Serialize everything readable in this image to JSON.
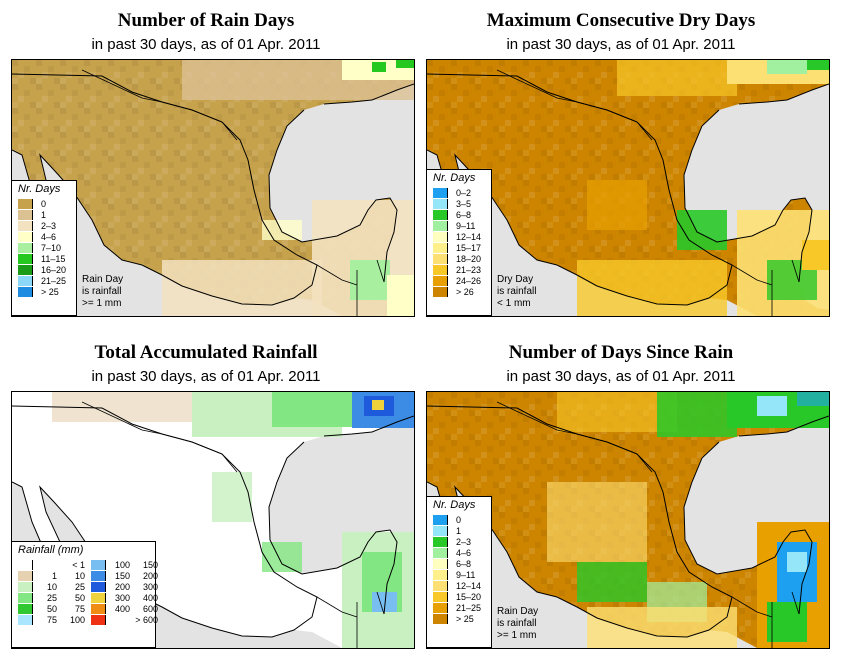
{
  "subtitle": "in past 30 days, as of  01 Apr. 2011",
  "colors": {
    "ocean": "#e3e3e3",
    "coast": "#000000"
  },
  "panels": [
    {
      "title": "Number of Rain Days",
      "legend_title": "Nr. Days",
      "note": [
        "Rain Day",
        "is rainfall",
        ">= 1 mm"
      ],
      "legend": [
        {
          "label": "0",
          "color": "#c6a24c"
        },
        {
          "label": "1",
          "color": "#dcc193"
        },
        {
          "label": "2–3",
          "color": "#f3e2c0"
        },
        {
          "label": "4–6",
          "color": "#ffffc8"
        },
        {
          "label": "7–10",
          "color": "#a8f0a0"
        },
        {
          "label": "11–15",
          "color": "#24c81e"
        },
        {
          "label": "16–20",
          "color": "#1a9c18"
        },
        {
          "label": "21–25",
          "color": "#8cd8f8"
        },
        {
          "label": "> 25",
          "color": "#1e8ce0"
        }
      ]
    },
    {
      "title": "Maximum Consecutive Dry Days",
      "legend_title": "Nr. Days",
      "note": [
        "Dry Day",
        "is rainfall",
        "< 1 mm"
      ],
      "legend": [
        {
          "label": "0–2",
          "color": "#1ea0f0"
        },
        {
          "label": "3–5",
          "color": "#96e6fa"
        },
        {
          "label": "6–8",
          "color": "#28c828"
        },
        {
          "label": "9–11",
          "color": "#a0f0a0"
        },
        {
          "label": "12–14",
          "color": "#ffffc0"
        },
        {
          "label": "15–17",
          "color": "#fff08c"
        },
        {
          "label": "18–20",
          "color": "#fde073"
        },
        {
          "label": "21–23",
          "color": "#f8c828"
        },
        {
          "label": "24–26",
          "color": "#e8a000"
        },
        {
          "label": "> 26",
          "color": "#cd8500"
        }
      ]
    },
    {
      "title": "Total Accumulated Rainfall",
      "legend_title": "Rainfall (mm)",
      "legend_left": [
        {
          "from": "",
          "to": "< 1",
          "color": "#ffffff"
        },
        {
          "from": "1",
          "to": "10",
          "color": "#e6d2b0"
        },
        {
          "from": "10",
          "to": "25",
          "color": "#c8f0c0"
        },
        {
          "from": "25",
          "to": "50",
          "color": "#82e682"
        },
        {
          "from": "50",
          "to": "75",
          "color": "#32c832"
        },
        {
          "from": "75",
          "to": "100",
          "color": "#aae6ff"
        }
      ],
      "legend_right": [
        {
          "from": "100",
          "to": "150",
          "color": "#78bef0"
        },
        {
          "from": "150",
          "to": "200",
          "color": "#3c8ce6"
        },
        {
          "from": "200",
          "to": "300",
          "color": "#1e5adc"
        },
        {
          "from": "300",
          "to": "400",
          "color": "#f0d23c"
        },
        {
          "from": "400",
          "to": "600",
          "color": "#f08c14"
        },
        {
          "from": "",
          "to": "> 600",
          "color": "#f03214"
        }
      ]
    },
    {
      "title": "Number of Days Since Rain",
      "legend_title": "Nr. Days",
      "note": [
        "Rain Day",
        "is rainfall",
        ">= 1 mm"
      ],
      "legend": [
        {
          "label": "0",
          "color": "#1ea0f0"
        },
        {
          "label": "1",
          "color": "#96e6fa"
        },
        {
          "label": "2–3",
          "color": "#28c828"
        },
        {
          "label": "4–6",
          "color": "#a0f0a0"
        },
        {
          "label": "6–8",
          "color": "#ffffc0"
        },
        {
          "label": "9–11",
          "color": "#fff08c"
        },
        {
          "label": "12–14",
          "color": "#fde073"
        },
        {
          "label": "15–20",
          "color": "#f8c828"
        },
        {
          "label": "21–25",
          "color": "#e8a000"
        },
        {
          "label": "> 25",
          "color": "#cd8500"
        }
      ]
    }
  ]
}
